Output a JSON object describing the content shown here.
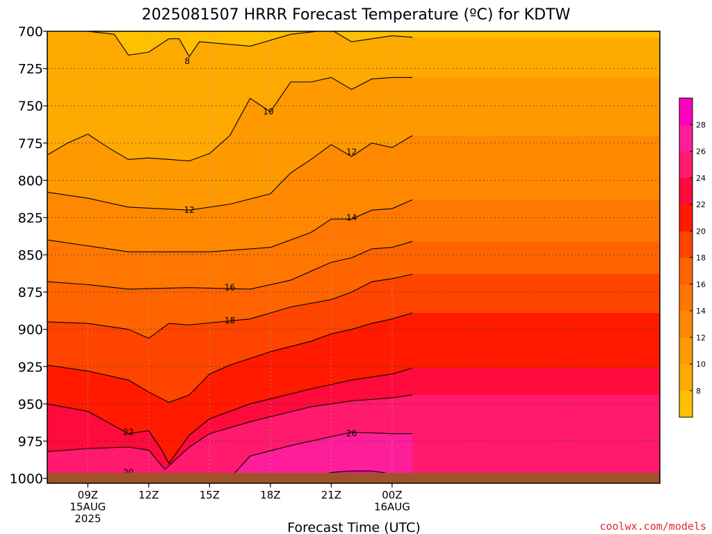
{
  "chart_data": {
    "type": "heatmap",
    "title": "2025081507 HRRR Forecast Temperature (ºC) for KDTW",
    "xlabel": "Forecast Time (UTC)",
    "ylabel": "",
    "credit": "coolwx.com/models",
    "x_range_hours_utc": [
      7,
      37.2
    ],
    "y_pressure_range": [
      700,
      1000
    ],
    "y_ticks": [
      700,
      725,
      750,
      775,
      800,
      825,
      850,
      875,
      900,
      925,
      950,
      975,
      1000
    ],
    "y_tick_labels": [
      "700",
      "725",
      "750",
      "775",
      "800",
      "825",
      "850",
      "875",
      "900",
      "925",
      "950",
      "975",
      "1000"
    ],
    "x_ticks": [
      {
        "hour": 9,
        "lines": [
          "09Z",
          "15AUG",
          "2025"
        ]
      },
      {
        "hour": 12,
        "lines": [
          "12Z"
        ]
      },
      {
        "hour": 15,
        "lines": [
          "15Z"
        ]
      },
      {
        "hour": 18,
        "lines": [
          "18Z"
        ]
      },
      {
        "hour": 21,
        "lines": [
          "21Z"
        ]
      },
      {
        "hour": 24,
        "lines": [
          "00Z",
          "16AUG"
        ]
      }
    ],
    "grid": true,
    "colorbar": {
      "position": "right",
      "levels": [
        6,
        8,
        10,
        12,
        14,
        16,
        18,
        20,
        22,
        24,
        26,
        28,
        30
      ],
      "tick_labels": [
        "8",
        "10",
        "12",
        "14",
        "16",
        "18",
        "20",
        "22",
        "24",
        "26",
        "28"
      ],
      "colors": [
        "#ffc000",
        "#ffaa00",
        "#ff9900",
        "#ff8800",
        "#ff7700",
        "#ff6400",
        "#ff4400",
        "#ff1a00",
        "#ff0a3c",
        "#ff1a6e",
        "#ff1e9a",
        "#ff00bf"
      ]
    },
    "isotherms": [
      {
        "value": 8,
        "label": "8",
        "points": [
          [
            7,
            700
          ],
          [
            9,
            700
          ],
          [
            10.3,
            702
          ],
          [
            11,
            716
          ],
          [
            12,
            714
          ],
          [
            13,
            705
          ],
          [
            13.5,
            705
          ],
          [
            14,
            717
          ],
          [
            14.5,
            707
          ],
          [
            17,
            710
          ],
          [
            19,
            702
          ],
          [
            21,
            699
          ],
          [
            22,
            707
          ],
          [
            24,
            703
          ],
          [
            25,
            704
          ]
        ]
      },
      {
        "value": 10,
        "label": "10",
        "points": [
          [
            7,
            783
          ],
          [
            8,
            775
          ],
          [
            9,
            769
          ],
          [
            10,
            778
          ],
          [
            11,
            786
          ],
          [
            12,
            785
          ],
          [
            14,
            787
          ],
          [
            15,
            782
          ],
          [
            16,
            770
          ],
          [
            17,
            745
          ],
          [
            18,
            754
          ],
          [
            19,
            734
          ],
          [
            20,
            734
          ],
          [
            21,
            731
          ],
          [
            22,
            739
          ],
          [
            23,
            732
          ],
          [
            24,
            731
          ],
          [
            25,
            731
          ]
        ]
      },
      {
        "value": 12,
        "label": "12",
        "points": [
          [
            7,
            808
          ],
          [
            9,
            812
          ],
          [
            11,
            818
          ],
          [
            14,
            820
          ],
          [
            16,
            816
          ],
          [
            18,
            809
          ],
          [
            19,
            795
          ],
          [
            20,
            786
          ],
          [
            21,
            776
          ],
          [
            22,
            784
          ],
          [
            23,
            775
          ],
          [
            24,
            778
          ],
          [
            25,
            770
          ]
        ]
      },
      {
        "value": 14,
        "label": "14",
        "points": [
          [
            7,
            840
          ],
          [
            9,
            844
          ],
          [
            11,
            848
          ],
          [
            15,
            848
          ],
          [
            18,
            845
          ],
          [
            20,
            835
          ],
          [
            21,
            826
          ],
          [
            22,
            826
          ],
          [
            23,
            820
          ],
          [
            24,
            819
          ],
          [
            25,
            813
          ]
        ]
      },
      {
        "value": 16,
        "label": "16",
        "points": [
          [
            7,
            868
          ],
          [
            9,
            870
          ],
          [
            11,
            873
          ],
          [
            14,
            872
          ],
          [
            17,
            873
          ],
          [
            19,
            867
          ],
          [
            21,
            855
          ],
          [
            22,
            852
          ],
          [
            23,
            846
          ],
          [
            24,
            845
          ],
          [
            25,
            841
          ]
        ]
      },
      {
        "value": 18,
        "label": "18",
        "points": [
          [
            7,
            895
          ],
          [
            9,
            896
          ],
          [
            11,
            900
          ],
          [
            12,
            906
          ],
          [
            13,
            896
          ],
          [
            14,
            897
          ],
          [
            17,
            893
          ],
          [
            19,
            885
          ],
          [
            21,
            880
          ],
          [
            22,
            875
          ],
          [
            23,
            868
          ],
          [
            24,
            866
          ],
          [
            25,
            863
          ]
        ]
      },
      {
        "value": 20,
        "label": "",
        "points": [
          [
            7,
            924
          ],
          [
            9,
            928
          ],
          [
            11,
            934
          ],
          [
            12,
            942
          ],
          [
            13,
            949
          ],
          [
            14,
            944
          ],
          [
            15,
            930
          ],
          [
            16,
            924
          ],
          [
            18,
            915
          ],
          [
            20,
            908
          ],
          [
            21,
            903
          ],
          [
            22,
            900
          ],
          [
            23,
            896
          ],
          [
            24,
            893
          ],
          [
            25,
            889
          ]
        ]
      },
      {
        "value": 22,
        "label": "22",
        "points": [
          [
            7,
            950
          ],
          [
            9,
            955
          ],
          [
            11,
            970
          ],
          [
            12,
            968
          ],
          [
            12.6,
            980
          ],
          [
            13,
            990
          ],
          [
            14,
            971
          ],
          [
            15,
            960
          ],
          [
            17,
            950
          ],
          [
            20,
            940
          ],
          [
            22,
            934
          ],
          [
            24,
            930
          ],
          [
            25,
            926
          ]
        ]
      },
      {
        "value": 24,
        "label": "",
        "points": [
          [
            7,
            982
          ],
          [
            9,
            980
          ],
          [
            11,
            979
          ],
          [
            12,
            981
          ],
          [
            12.8,
            994
          ],
          [
            14,
            979
          ],
          [
            15,
            970
          ],
          [
            17,
            962
          ],
          [
            20,
            952
          ],
          [
            22,
            948
          ],
          [
            24,
            946
          ],
          [
            25,
            944
          ]
        ]
      },
      {
        "value": 26,
        "label": "26",
        "points": [
          [
            16,
            1000
          ],
          [
            17,
            985
          ],
          [
            19,
            978
          ],
          [
            21,
            972
          ],
          [
            22,
            969
          ],
          [
            24,
            970
          ],
          [
            25,
            970
          ]
        ]
      },
      {
        "value": 20,
        "label": "20",
        "points": [
          [
            8,
            1000
          ],
          [
            9,
            997
          ],
          [
            11,
            997
          ],
          [
            12,
            999
          ]
        ]
      },
      {
        "value": 28,
        "label": "",
        "points": [
          [
            20,
            1000
          ],
          [
            21,
            996
          ],
          [
            22,
            995
          ],
          [
            23,
            995
          ],
          [
            24,
            997
          ],
          [
            24.5,
            1000
          ]
        ]
      }
    ],
    "contour_labels": [
      {
        "text": "8",
        "x": 13.9,
        "y": 720
      },
      {
        "text": "10",
        "x": 17.9,
        "y": 754
      },
      {
        "text": "12",
        "x": 22.0,
        "y": 781
      },
      {
        "text": "12",
        "x": 14.0,
        "y": 820
      },
      {
        "text": "14",
        "x": 22.0,
        "y": 825
      },
      {
        "text": "16",
        "x": 16.0,
        "y": 872
      },
      {
        "text": "18",
        "x": 16.0,
        "y": 894
      },
      {
        "text": "22",
        "x": 11.0,
        "y": 969
      },
      {
        "text": "20",
        "x": 11.0,
        "y": 996
      },
      {
        "text": "26",
        "x": 22.0,
        "y": 970
      }
    ]
  }
}
